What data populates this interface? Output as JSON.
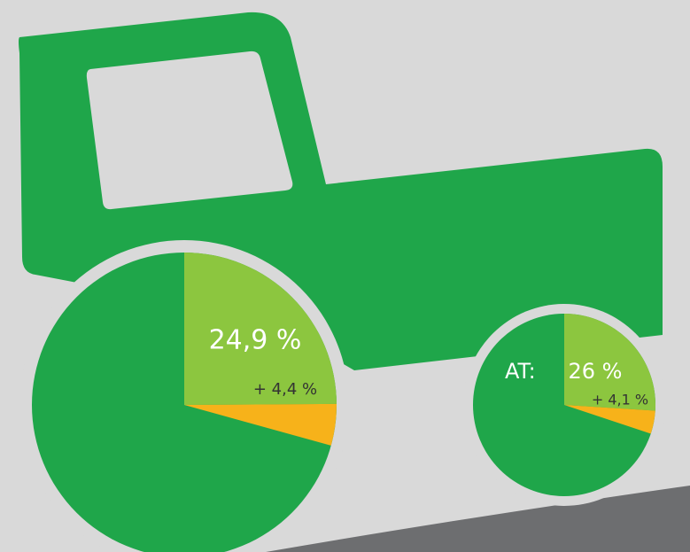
{
  "chart_data": [
    {
      "type": "pie",
      "values": [
        24.9,
        4.4
      ],
      "value_labels": [
        "24,9 %",
        "+ 4,4 %"
      ],
      "colors": [
        "#8cc63f",
        "#f7b21a"
      ],
      "base_color": "#1fa64a"
    },
    {
      "type": "pie",
      "label": "AT:",
      "values": [
        26,
        4.1
      ],
      "value_labels": [
        "26 %",
        "+ 4,1 %"
      ],
      "colors": [
        "#8cc63f",
        "#f7b21a"
      ],
      "base_color": "#1fa64a"
    }
  ]
}
